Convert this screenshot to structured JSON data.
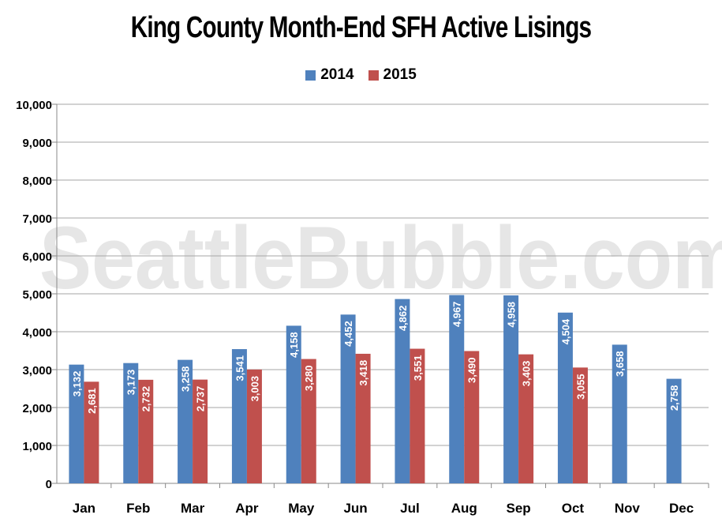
{
  "chart_data": {
    "type": "bar",
    "title": "King County Month-End SFH Active Lisings",
    "watermark": "SeattleBubble.com",
    "categories": [
      "Jan",
      "Feb",
      "Mar",
      "Apr",
      "May",
      "Jun",
      "Jul",
      "Aug",
      "Sep",
      "Oct",
      "Nov",
      "Dec"
    ],
    "series": [
      {
        "name": "2014",
        "color": "#4f81bd",
        "values": [
          3132,
          3173,
          3258,
          3541,
          4158,
          4452,
          4862,
          4967,
          4958,
          4504,
          3658,
          2758
        ],
        "labels": [
          "3,132",
          "3,173",
          "3,258",
          "3,541",
          "4,158",
          "4,452",
          "4,862",
          "4,967",
          "4,958",
          "4,504",
          "3,658",
          "2,758"
        ]
      },
      {
        "name": "2015",
        "color": "#c0504d",
        "values": [
          2681,
          2732,
          2737,
          3003,
          3280,
          3418,
          3551,
          3490,
          3403,
          3055,
          null,
          null
        ],
        "labels": [
          "2,681",
          "2,732",
          "2,737",
          "3,003",
          "3,280",
          "3,418",
          "3,551",
          "3,490",
          "3,403",
          "3,055",
          "",
          ""
        ]
      }
    ],
    "ylim": [
      0,
      10000
    ],
    "yticks": [
      0,
      1000,
      2000,
      3000,
      4000,
      5000,
      6000,
      7000,
      8000,
      9000,
      10000
    ],
    "ytick_labels": [
      "0",
      "1,000",
      "2,000",
      "3,000",
      "4,000",
      "5,000",
      "6,000",
      "7,000",
      "8,000",
      "9,000",
      "10,000"
    ],
    "grid": true,
    "legend_position": "top-center"
  }
}
